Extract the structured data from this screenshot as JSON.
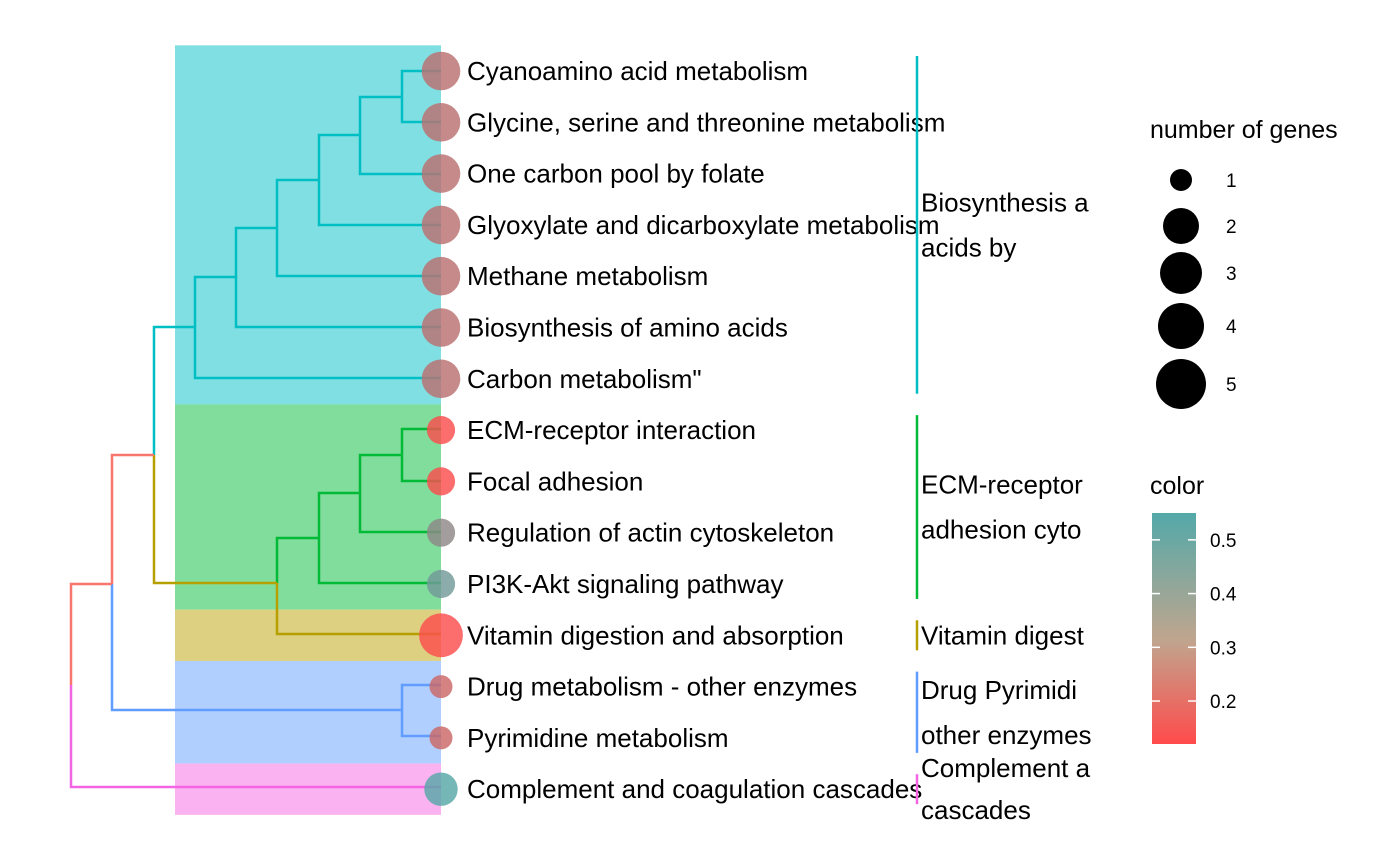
{
  "chart_data": {
    "type": "treeplot",
    "title": "",
    "terms": [
      {
        "label": "Cyanoamino acid metabolism",
        "count": 4,
        "color": 0.29
      },
      {
        "label": "Glycine, serine and threonine metabolism",
        "count": 4,
        "color": 0.29
      },
      {
        "label": "One carbon pool by folate",
        "count": 4,
        "color": 0.29
      },
      {
        "label": "Glyoxylate and dicarboxylate metabolism",
        "count": 4,
        "color": 0.29
      },
      {
        "label": "Methane metabolism",
        "count": 4,
        "color": 0.29
      },
      {
        "label": "Biosynthesis of amino acids",
        "count": 4,
        "color": 0.29
      },
      {
        "label": "Carbon metabolism\"",
        "count": 4,
        "color": 0.29
      },
      {
        "label": "ECM-receptor interaction",
        "count": 2,
        "color": 0.13
      },
      {
        "label": "Focal adhesion",
        "count": 2,
        "color": 0.13
      },
      {
        "label": "Regulation of actin cytoskeleton",
        "count": 2,
        "color": 0.4
      },
      {
        "label": "PI3K-Akt signaling pathway",
        "count": 2,
        "color": 0.47
      },
      {
        "label": "Vitamin digestion and absorption",
        "count": 5,
        "color": 0.13
      },
      {
        "label": "Drug metabolism - other enzymes",
        "count": 1,
        "color": 0.25
      },
      {
        "label": "Pyrimidine metabolism",
        "count": 1,
        "color": 0.25
      },
      {
        "label": "Complement and coagulation cascades",
        "count": 3,
        "color": 0.54
      }
    ],
    "clusters": [
      {
        "rows": [
          0,
          6
        ],
        "color": "#00BFC4",
        "lines": [
          "Biosynthesis a",
          "acids by"
        ]
      },
      {
        "rows": [
          7,
          10
        ],
        "color": "#00BA38",
        "lines": [
          "ECM-receptor",
          "adhesion cyto"
        ]
      },
      {
        "rows": [
          11,
          11
        ],
        "color": "#B79F00",
        "lines": [
          "Vitamin digest"
        ]
      },
      {
        "rows": [
          12,
          13
        ],
        "color": "#619CFF",
        "lines": [
          "Drug Pyrimidi",
          "other enzymes"
        ]
      },
      {
        "rows": [
          14,
          14
        ],
        "color": "#F564E3",
        "lines": [
          "Complement a",
          "cascades"
        ]
      }
    ],
    "legend_size": {
      "title": "number of genes",
      "values": [
        1,
        2,
        3,
        4,
        5
      ]
    },
    "legend_color": {
      "title": "color",
      "ticks": [
        0.5,
        0.4,
        0.3,
        0.2
      ],
      "tick_labels": [
        "0.5",
        "0.4",
        "0.3",
        "0.2"
      ],
      "range": [
        0.12,
        0.55
      ],
      "low_color": "#FF4B4B",
      "high_color": "#53A9A9"
    },
    "palette": {
      "cyan": "#00BFC4",
      "green": "#00BA38",
      "olive": "#B79F00",
      "blue": "#619CFF",
      "pink": "#F564E3",
      "root_red": "#F8766D"
    },
    "grid": false,
    "legend_position": "right"
  }
}
